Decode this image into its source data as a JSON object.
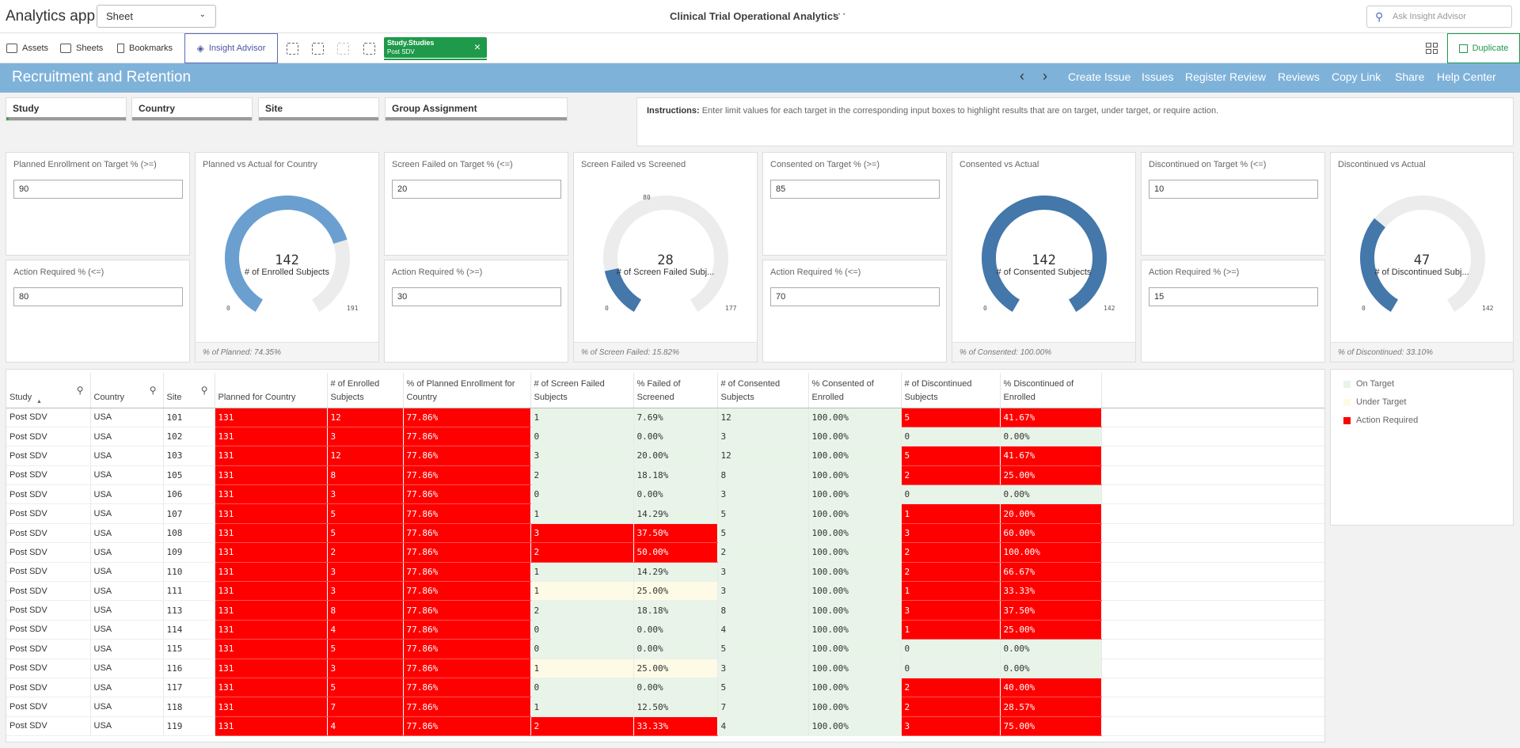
{
  "app": {
    "title": "Analytics app",
    "sheet_select": "Sheet",
    "sheet_title": "Clinical Trial Operational Analytics",
    "more": "···",
    "ask_placeholder": "Ask Insight Advisor"
  },
  "toolbar": {
    "assets": "Assets",
    "sheets": "Sheets",
    "bookmarks": "Bookmarks",
    "insight": "Insight Advisor",
    "selection_field": "Study.Studies",
    "selection_value": "Post SDV",
    "clear": "×",
    "duplicate": "Duplicate"
  },
  "header": {
    "title": "Recruitment and Retention",
    "prev": "‹",
    "next": "›",
    "links": [
      "Create Issue",
      "Issues",
      "Register Review",
      "Reviews",
      "Copy Link",
      "Share",
      "Help Center"
    ]
  },
  "filters": [
    {
      "label": "Study",
      "selected_fraction": 0.02
    },
    {
      "label": "Country",
      "selected_fraction": 0.0
    },
    {
      "label": "Site",
      "selected_fraction": 0.0
    },
    {
      "label": "Group Assignment",
      "selected_fraction": 0.0
    }
  ],
  "instructions": {
    "label": "Instructions:",
    "text": "Enter limit values for each target in the corresponding input boxes to highlight results that are on target, under target, or require action."
  },
  "inputs": [
    {
      "target_label": "Planned Enrollment on Target % (>=)",
      "target_value": "90",
      "action_label": "Action Required % (<=)",
      "action_value": "80"
    },
    {
      "target_label": "Screen Failed on Target % (<=)",
      "target_value": "20",
      "action_label": "Action Required % (>=)",
      "action_value": "30"
    },
    {
      "target_label": "Consented on Target % (>=)",
      "target_value": "85",
      "action_label": "Action Required % (<=)",
      "action_value": "70"
    },
    {
      "target_label": "Discontinued on Target % (<=)",
      "target_value": "10",
      "action_label": "Action Required % (>=)",
      "action_value": "15"
    }
  ],
  "gauges": [
    {
      "title": "Planned vs Actual for Country",
      "value": "142",
      "measure": "# of Enrolled Subjects",
      "min": "0",
      "max": "191",
      "fraction": 0.7435,
      "marker": "",
      "marker_fraction": 0,
      "color": "#6a9fd0",
      "footer": "% of Planned: 74.35%"
    },
    {
      "title": "Screen Failed vs Screened",
      "value": "28",
      "measure": "# of Screen Failed Subj...",
      "min": "0",
      "max": "177",
      "fraction": 0.1582,
      "marker": "80",
      "marker_fraction": 0.452,
      "color": "#4477aa",
      "footer": "% of Screen Failed: 15.82%"
    },
    {
      "title": "Consented vs Actual",
      "value": "142",
      "measure": "# of Consented Subjects",
      "min": "0",
      "max": "142",
      "fraction": 1.0,
      "marker": "",
      "marker_fraction": 0,
      "color": "#4477aa",
      "footer": "% of Consented: 100.00%"
    },
    {
      "title": "Discontinued vs Actual",
      "value": "47",
      "measure": "# of Discontinued Subj...",
      "min": "0",
      "max": "142",
      "fraction": 0.331,
      "marker": "",
      "marker_fraction": 0,
      "color": "#4477aa",
      "footer": "% of Discontinued: 33.10%"
    }
  ],
  "table": {
    "columns": [
      "Study",
      "Country",
      "Site",
      "Planned for Country",
      "# of Enrolled Subjects",
      "% of Planned Enrollment for Country",
      "# of Screen Failed Subjects",
      "% Failed of Screened",
      "# of Consented Subjects",
      "% Consented of Enrolled",
      "# of Discontinued Subjects",
      "% Discontinued of Enrolled"
    ],
    "rows": [
      [
        "Post SDV",
        "USA",
        "101",
        "131",
        "12",
        "77.86%",
        "1",
        "7.69%",
        "12",
        "100.00%",
        "5",
        "41.67%"
      ],
      [
        "Post SDV",
        "USA",
        "102",
        "131",
        "3",
        "77.86%",
        "0",
        "0.00%",
        "3",
        "100.00%",
        "0",
        "0.00%"
      ],
      [
        "Post SDV",
        "USA",
        "103",
        "131",
        "12",
        "77.86%",
        "3",
        "20.00%",
        "12",
        "100.00%",
        "5",
        "41.67%"
      ],
      [
        "Post SDV",
        "USA",
        "105",
        "131",
        "8",
        "77.86%",
        "2",
        "18.18%",
        "8",
        "100.00%",
        "2",
        "25.00%"
      ],
      [
        "Post SDV",
        "USA",
        "106",
        "131",
        "3",
        "77.86%",
        "0",
        "0.00%",
        "3",
        "100.00%",
        "0",
        "0.00%"
      ],
      [
        "Post SDV",
        "USA",
        "107",
        "131",
        "5",
        "77.86%",
        "1",
        "14.29%",
        "5",
        "100.00%",
        "1",
        "20.00%"
      ],
      [
        "Post SDV",
        "USA",
        "108",
        "131",
        "5",
        "77.86%",
        "3",
        "37.50%",
        "5",
        "100.00%",
        "3",
        "60.00%"
      ],
      [
        "Post SDV",
        "USA",
        "109",
        "131",
        "2",
        "77.86%",
        "2",
        "50.00%",
        "2",
        "100.00%",
        "2",
        "100.00%"
      ],
      [
        "Post SDV",
        "USA",
        "110",
        "131",
        "3",
        "77.86%",
        "1",
        "14.29%",
        "3",
        "100.00%",
        "2",
        "66.67%"
      ],
      [
        "Post SDV",
        "USA",
        "111",
        "131",
        "3",
        "77.86%",
        "1",
        "25.00%",
        "3",
        "100.00%",
        "1",
        "33.33%"
      ],
      [
        "Post SDV",
        "USA",
        "113",
        "131",
        "8",
        "77.86%",
        "2",
        "18.18%",
        "8",
        "100.00%",
        "3",
        "37.50%"
      ],
      [
        "Post SDV",
        "USA",
        "114",
        "131",
        "4",
        "77.86%",
        "0",
        "0.00%",
        "4",
        "100.00%",
        "1",
        "25.00%"
      ],
      [
        "Post SDV",
        "USA",
        "115",
        "131",
        "5",
        "77.86%",
        "0",
        "0.00%",
        "5",
        "100.00%",
        "0",
        "0.00%"
      ],
      [
        "Post SDV",
        "USA",
        "116",
        "131",
        "3",
        "77.86%",
        "1",
        "25.00%",
        "3",
        "100.00%",
        "0",
        "0.00%"
      ],
      [
        "Post SDV",
        "USA",
        "117",
        "131",
        "5",
        "77.86%",
        "0",
        "0.00%",
        "5",
        "100.00%",
        "2",
        "40.00%"
      ],
      [
        "Post SDV",
        "USA",
        "118",
        "131",
        "7",
        "77.86%",
        "1",
        "12.50%",
        "7",
        "100.00%",
        "2",
        "28.57%"
      ],
      [
        "Post SDV",
        "USA",
        "119",
        "131",
        "4",
        "77.86%",
        "2",
        "33.33%",
        "4",
        "100.00%",
        "3",
        "75.00%"
      ]
    ]
  },
  "legend": [
    {
      "label": "On Target",
      "color": "#e8f4e8"
    },
    {
      "label": "Under Target",
      "color": "#fdfbe6"
    },
    {
      "label": "Action Required",
      "color": "#ff0000"
    }
  ],
  "colors": {
    "accent": "#7fb2d9",
    "action_required": "#ff0000",
    "on_target": "#e8f4e8",
    "under_target": "#fdfbe6",
    "selection_green": "#1e9a4a"
  }
}
